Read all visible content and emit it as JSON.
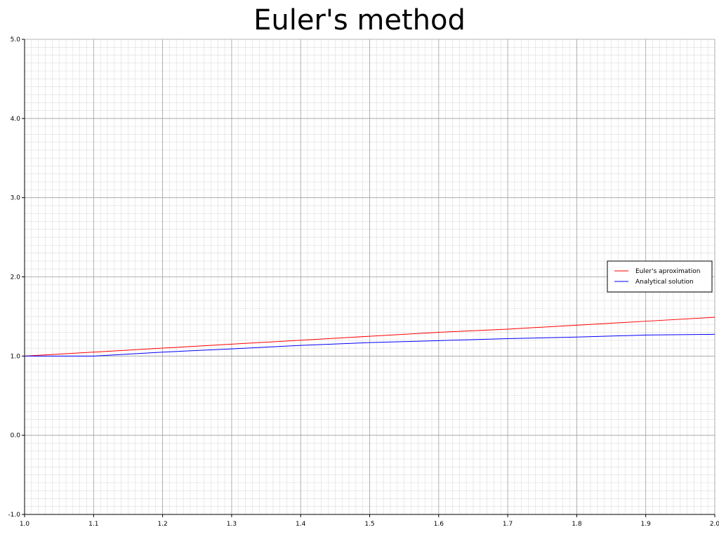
{
  "chart_data": {
    "type": "line",
    "title": "Euler's method",
    "xlabel": "",
    "ylabel": "",
    "xlim": [
      1.0,
      2.0
    ],
    "ylim": [
      -1.0,
      5.0
    ],
    "x_ticks": [
      "1.0",
      "1.1",
      "1.2",
      "1.3",
      "1.4",
      "1.5",
      "1.6",
      "1.7",
      "1.8",
      "1.9",
      "2.0"
    ],
    "y_ticks": [
      "-1.0",
      "0.0",
      "1.0",
      "2.0",
      "3.0",
      "4.0",
      "5.0"
    ],
    "grid": true,
    "legend_position": "right",
    "series": [
      {
        "name": "Euler's aproximation",
        "color": "#ff0000",
        "x": [
          1.0,
          1.1,
          1.2,
          1.3,
          1.4,
          1.5,
          1.6,
          1.7,
          1.8,
          1.9,
          2.0
        ],
        "y": [
          1.0,
          1.05,
          1.1,
          1.15,
          1.2,
          1.25,
          1.3,
          1.34,
          1.39,
          1.44,
          1.49
        ]
      },
      {
        "name": "Analytical solution",
        "color": "#0000ff",
        "x": [
          1.0,
          1.1,
          1.2,
          1.3,
          1.4,
          1.5,
          1.6,
          1.7,
          1.8,
          1.9,
          2.0
        ],
        "y": [
          1.0,
          1.0,
          1.05,
          1.09,
          1.135,
          1.17,
          1.195,
          1.22,
          1.24,
          1.265,
          1.275
        ]
      }
    ]
  }
}
